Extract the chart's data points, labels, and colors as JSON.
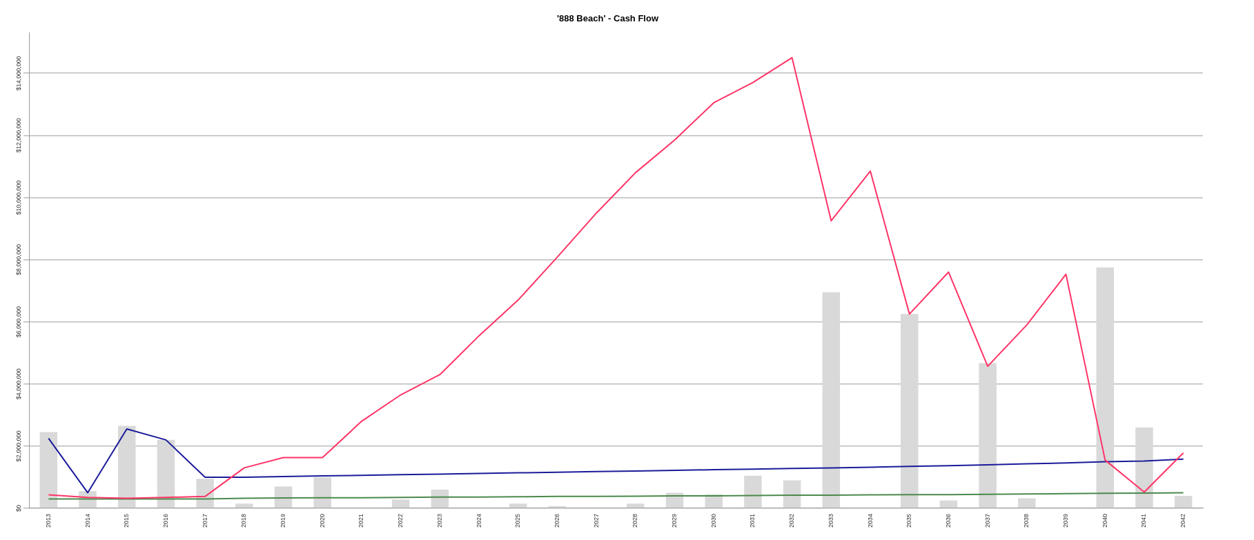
{
  "chart_data": {
    "type": "bar",
    "title": "'888 Beach' - Cash Flow",
    "categories": [
      "2013",
      "2014",
      "2015",
      "2016",
      "2017",
      "2018",
      "2019",
      "2020",
      "2021",
      "2022",
      "2023",
      "2024",
      "2025",
      "2026",
      "2027",
      "2028",
      "2029",
      "2030",
      "2031",
      "2032",
      "2033",
      "2034",
      "2035",
      "2036",
      "2037",
      "2038",
      "2039",
      "2040",
      "2041",
      "2042"
    ],
    "series": [
      {
        "color": "#d9d9d9",
        "values": [
          2450000,
          550000,
          2650000,
          2200000,
          950000,
          150000,
          700000,
          1000000,
          0,
          280000,
          600000,
          null,
          150000,
          70000,
          null,
          150000,
          500000,
          450000,
          1050000,
          900000,
          6950000,
          null,
          6250000,
          250000,
          4670000,
          320000,
          null,
          7750000,
          2600000,
          400000
        ]
      },
      {
        "type": "line",
        "color": "#ff3366",
        "values": [
          430000,
          350000,
          320000,
          350000,
          380000,
          1300000,
          1630000,
          1630000,
          2800000,
          3650000,
          4300000,
          5550000,
          6700000,
          8080000,
          9500000,
          10800000,
          11850000,
          13050000,
          13700000,
          14500000,
          9250000,
          10850000,
          6250000,
          7600000,
          4570000,
          5900000,
          7530000,
          1550000,
          520000,
          1780000
        ]
      },
      {
        "type": "line",
        "color": "#1a1a99",
        "values": [
          2250000,
          500000,
          2550000,
          2200000,
          1000000,
          1000000,
          1020000,
          1040000,
          1060000,
          1080000,
          1100000,
          1120000,
          1140000,
          1160000,
          1180000,
          1200000,
          1220000,
          1240000,
          1260000,
          1280000,
          1300000,
          1320000,
          1350000,
          1370000,
          1400000,
          1430000,
          1460000,
          1500000,
          1520000,
          1580000
        ]
      },
      {
        "type": "line",
        "color": "#4a8a4a",
        "values": [
          300000,
          300000,
          300000,
          300000,
          300000,
          320000,
          330000,
          340000,
          340000,
          350000,
          360000,
          360000,
          370000,
          380000,
          380000,
          390000,
          400000,
          400000,
          410000,
          420000,
          420000,
          430000,
          440000,
          440000,
          450000,
          460000,
          470000,
          480000,
          490000,
          500000
        ]
      }
    ],
    "ylim": [
      0,
      15300000
    ],
    "yticks": [
      {
        "value": 0,
        "label": "$0"
      },
      {
        "value": 2000000,
        "label": "$2,000,000"
      },
      {
        "value": 4000000,
        "label": "$4,000,000"
      },
      {
        "value": 6000000,
        "label": "$6,000,000"
      },
      {
        "value": 8000000,
        "label": "$8,000,000"
      },
      {
        "value": 10000000,
        "label": "$10,000,000"
      },
      {
        "value": 12000000,
        "label": "$12,000,000"
      },
      {
        "value": 14000000,
        "label": "$14,000,000"
      }
    ],
    "grid": "y",
    "legend": false,
    "marker": "none",
    "line_style": "solid"
  }
}
